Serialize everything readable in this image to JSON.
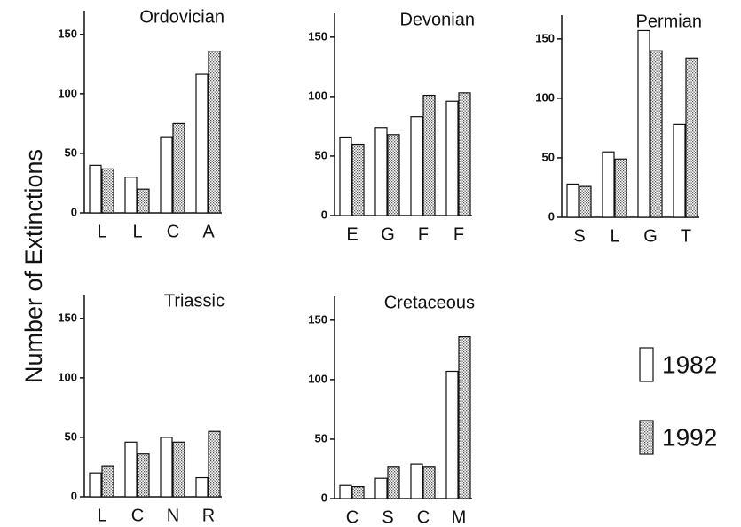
{
  "ylabel": "Number of Extinctions",
  "chart_data": [
    {
      "type": "bar",
      "title": "Ordovician",
      "categories": [
        "L",
        "L",
        "C",
        "A"
      ],
      "series": [
        {
          "name": "1982",
          "color": "#ffffff",
          "values": [
            40,
            30,
            64,
            117
          ]
        },
        {
          "name": "1992",
          "color": "#555555",
          "values": [
            37,
            20,
            75,
            136
          ]
        }
      ],
      "ylim": [
        0,
        170
      ],
      "yticks": [
        0,
        50,
        100,
        150
      ]
    },
    {
      "type": "bar",
      "title": "Devonian",
      "categories": [
        "E",
        "G",
        "F",
        "F"
      ],
      "series": [
        {
          "name": "1982",
          "color": "#ffffff",
          "values": [
            66,
            74,
            83,
            96
          ]
        },
        {
          "name": "1992",
          "color": "#555555",
          "values": [
            60,
            68,
            101,
            103
          ]
        }
      ],
      "ylim": [
        0,
        170
      ],
      "yticks": [
        0,
        50,
        100,
        150
      ]
    },
    {
      "type": "bar",
      "title": "Permian",
      "categories": [
        "S",
        "L",
        "G",
        "T"
      ],
      "series": [
        {
          "name": "1982",
          "color": "#ffffff",
          "values": [
            28,
            55,
            157,
            78
          ]
        },
        {
          "name": "1992",
          "color": "#555555",
          "values": [
            26,
            49,
            140,
            134
          ]
        }
      ],
      "ylim": [
        0,
        170
      ],
      "yticks": [
        0,
        50,
        100,
        150
      ]
    },
    {
      "type": "bar",
      "title": "Triassic",
      "categories": [
        "L",
        "C",
        "N",
        "R"
      ],
      "series": [
        {
          "name": "1982",
          "color": "#ffffff",
          "values": [
            20,
            46,
            50,
            16
          ]
        },
        {
          "name": "1992",
          "color": "#555555",
          "values": [
            26,
            36,
            46,
            55
          ]
        }
      ],
      "ylim": [
        0,
        170
      ],
      "yticks": [
        0,
        50,
        100,
        150
      ]
    },
    {
      "type": "bar",
      "title": "Cretaceous",
      "categories": [
        "C",
        "S",
        "C",
        "M"
      ],
      "series": [
        {
          "name": "1982",
          "color": "#ffffff",
          "values": [
            11,
            17,
            29,
            107
          ]
        },
        {
          "name": "1992",
          "color": "#555555",
          "values": [
            10,
            27,
            27,
            136
          ]
        }
      ],
      "ylim": [
        0,
        170
      ],
      "yticks": [
        0,
        50,
        100,
        150
      ]
    }
  ]
}
